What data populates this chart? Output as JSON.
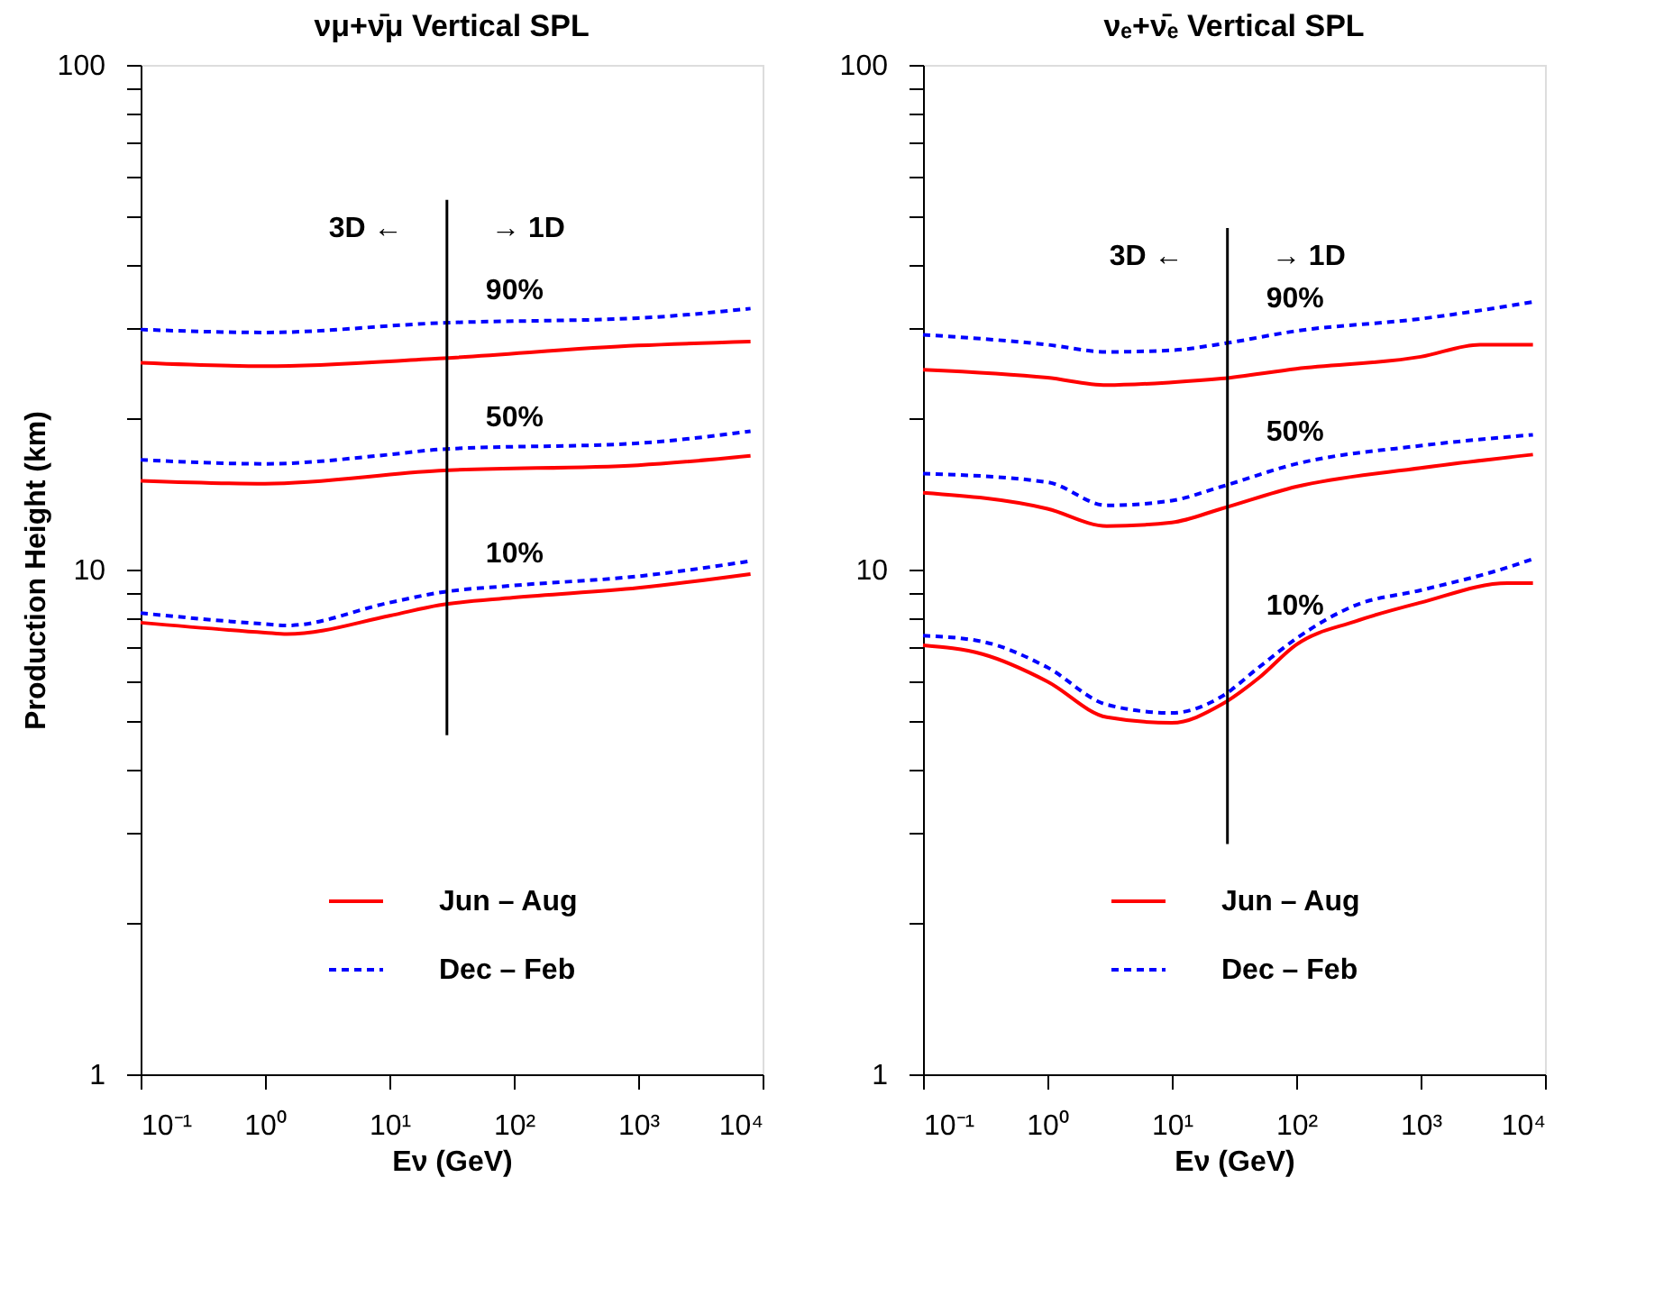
{
  "chart_data": [
    {
      "type": "line",
      "title": "νμ+ν̄μ     Vertical         SPL",
      "xlabel": "Eν  (GeV)",
      "ylabel": "Production Height (km)",
      "log": "xy",
      "grid": false,
      "legend": "bottom",
      "marker": "none",
      "xlim": [
        0.1,
        10000
      ],
      "ylim": [
        1,
        100
      ],
      "xticks": [
        {
          "value": 0.1,
          "label": "10⁻¹"
        },
        {
          "value": 1,
          "label": "10⁰"
        },
        {
          "value": 10,
          "label": "10¹"
        },
        {
          "value": 100,
          "label": "10²"
        },
        {
          "value": 1000,
          "label": "10³"
        },
        {
          "value": 10000,
          "label": "10⁴"
        }
      ],
      "yticks": [
        1,
        {
          "value": 2,
          "label": null
        },
        {
          "value": 3,
          "label": null
        },
        {
          "value": 4,
          "label": null
        },
        {
          "value": 5,
          "label": null
        },
        {
          "value": 6,
          "label": null
        },
        {
          "value": 7,
          "label": null
        },
        {
          "value": 8,
          "label": null
        },
        {
          "value": 9,
          "label": null
        },
        10,
        {
          "value": 20,
          "label": null
        },
        {
          "value": 30,
          "label": null
        },
        {
          "value": 40,
          "label": null
        },
        {
          "value": 50,
          "label": null
        },
        {
          "value": 60,
          "label": null
        },
        {
          "value": 70,
          "label": null
        },
        {
          "value": 80,
          "label": null
        },
        {
          "value": 90,
          "label": null
        },
        100
      ],
      "series": [
        {
          "name": "Jun – Aug",
          "color": "#ff0000",
          "line_style": "solid",
          "x": [
            0.1,
            1,
            25,
            1000,
            8000
          ],
          "values": [
            25.7,
            25.3,
            26.2,
            27.8,
            28.3
          ]
        },
        {
          "name": "Dec – Feb",
          "color": "#0000ff",
          "line_style": "dashed",
          "x": [
            0.1,
            1,
            25,
            1000,
            8000
          ],
          "values": [
            29.9,
            29.5,
            30.8,
            31.5,
            32.9
          ]
        },
        {
          "color": "#ff0000",
          "line_style": "solid",
          "x": [
            0.1,
            1,
            25,
            1000,
            8000
          ],
          "values": [
            15.0,
            14.8,
            15.7,
            16.1,
            16.8
          ]
        },
        {
          "color": "#0000ff",
          "line_style": "dashed",
          "x": [
            0.1,
            1,
            10,
            25,
            1000,
            8000
          ],
          "values": [
            16.5,
            16.2,
            16.9,
            17.3,
            17.8,
            18.8
          ]
        },
        {
          "color": "#ff0000",
          "line_style": "solid",
          "x": [
            0.1,
            1,
            1.5,
            10,
            25,
            100,
            1000,
            8000
          ],
          "values": [
            7.85,
            7.5,
            7.45,
            8.1,
            8.5,
            8.8,
            9.2,
            9.8
          ]
        },
        {
          "color": "#0000ff",
          "line_style": "dashed",
          "x": [
            0.1,
            1,
            1.5,
            10,
            25,
            100,
            1000,
            8000
          ],
          "values": [
            8.2,
            7.8,
            7.75,
            8.6,
            9.0,
            9.3,
            9.7,
            10.4
          ]
        },
        {
          "color": "#000000",
          "line_style": "solid",
          "x": [
            29,
            29
          ],
          "values": [
            4.7,
            54
          ]
        }
      ],
      "annotations": [
        "3D ←",
        "→ 1D",
        "90%",
        "50%",
        "10%"
      ]
    },
    {
      "type": "line",
      "title": "νₑ+ν̄ₑ     Vertical         SPL",
      "xlabel": "Eν  (GeV)",
      "log": "xy",
      "grid": false,
      "legend": "bottom",
      "marker": "none",
      "xlim": [
        0.1,
        10000
      ],
      "ylim": [
        1,
        100
      ],
      "xticks": [
        {
          "value": 0.1,
          "label": "10⁻¹"
        },
        {
          "value": 1,
          "label": "10⁰"
        },
        {
          "value": 10,
          "label": "10¹"
        },
        {
          "value": 100,
          "label": "10²"
        },
        {
          "value": 1000,
          "label": "10³"
        },
        {
          "value": 10000,
          "label": "10⁴"
        }
      ],
      "yticks": [
        1,
        {
          "value": 2,
          "label": null
        },
        {
          "value": 3,
          "label": null
        },
        {
          "value": 4,
          "label": null
        },
        {
          "value": 5,
          "label": null
        },
        {
          "value": 6,
          "label": null
        },
        {
          "value": 7,
          "label": null
        },
        {
          "value": 8,
          "label": null
        },
        {
          "value": 9,
          "label": null
        },
        10,
        {
          "value": 20,
          "label": null
        },
        {
          "value": 30,
          "label": null
        },
        {
          "value": 40,
          "label": null
        },
        {
          "value": 50,
          "label": null
        },
        {
          "value": 60,
          "label": null
        },
        {
          "value": 70,
          "label": null
        },
        {
          "value": 80,
          "label": null
        },
        {
          "value": 90,
          "label": null
        },
        100
      ],
      "series": [
        {
          "name": "Jun – Aug",
          "color": "#ff0000",
          "line_style": "solid",
          "x": [
            0.1,
            1,
            3,
            10,
            25,
            100,
            1000,
            3000,
            8000
          ],
          "values": [
            24.9,
            24.0,
            23.2,
            23.5,
            23.9,
            25.0,
            26.4,
            27.9,
            27.9
          ]
        },
        {
          "name": "Dec – Feb",
          "color": "#0000ff",
          "line_style": "dashed",
          "x": [
            0.1,
            1,
            3,
            10,
            25,
            100,
            1000,
            8000
          ],
          "values": [
            29.2,
            27.9,
            27.0,
            27.2,
            28.0,
            29.7,
            31.4,
            33.9
          ]
        },
        {
          "color": "#ff0000",
          "line_style": "solid",
          "x": [
            0.1,
            1,
            3,
            10,
            25,
            100,
            1000,
            8000
          ],
          "values": [
            14.2,
            13.2,
            12.2,
            12.4,
            13.2,
            14.6,
            15.9,
            16.9
          ]
        },
        {
          "color": "#0000ff",
          "line_style": "dashed",
          "x": [
            0.1,
            1,
            3,
            10,
            25,
            100,
            1000,
            8000
          ],
          "values": [
            15.5,
            14.9,
            13.4,
            13.7,
            14.6,
            16.2,
            17.6,
            18.5
          ]
        },
        {
          "color": "#ff0000",
          "line_style": "solid",
          "x": [
            0.1,
            0.3,
            1,
            3,
            10,
            25,
            50,
            100,
            300,
            1000,
            5000,
            8000
          ],
          "values": [
            7.08,
            6.8,
            6.0,
            5.1,
            4.97,
            5.4,
            6.1,
            7.1,
            7.9,
            8.6,
            9.4,
            9.4
          ]
        },
        {
          "color": "#0000ff",
          "line_style": "dashed",
          "x": [
            0.1,
            0.3,
            1,
            3,
            10,
            25,
            50,
            100,
            300,
            1000,
            5000,
            8000
          ],
          "values": [
            7.4,
            7.2,
            6.4,
            5.4,
            5.2,
            5.6,
            6.4,
            7.3,
            8.5,
            9.1,
            10.1,
            10.5
          ]
        },
        {
          "color": "#000000",
          "line_style": "solid",
          "x": [
            28,
            28
          ],
          "values": [
            2.86,
            47.5
          ]
        }
      ],
      "annotations": [
        "3D ←",
        "→ 1D",
        "90%",
        "50%",
        "10%"
      ]
    }
  ]
}
